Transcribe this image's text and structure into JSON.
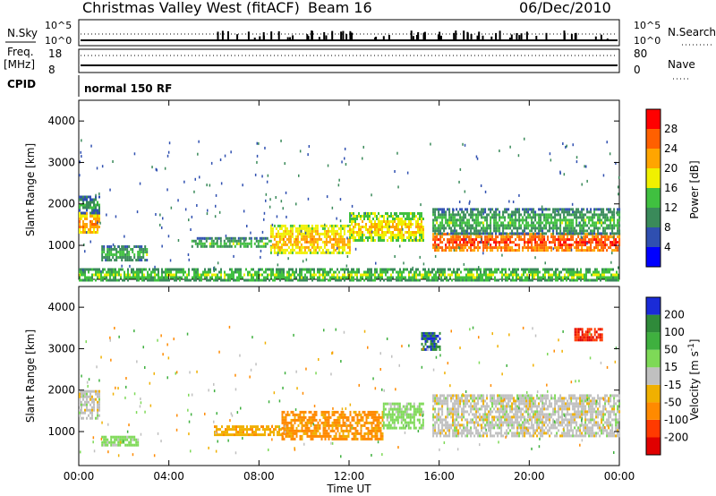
{
  "header": {
    "station": "Christmas Valley West (fitACF)",
    "beam": "Beam 16",
    "date": "06/Dec/2010"
  },
  "strip": {
    "nsky_label": "N.Sky",
    "nsky_ticks": [
      "10^5",
      "10^0"
    ],
    "nsearch_label": "N.Search",
    "freq_label": "Freq.",
    "freq_unit": "[MHz]",
    "freq_ticks": [
      "18",
      "8"
    ],
    "nave_ticks": [
      "80",
      "0"
    ],
    "nave_label": "Nave",
    "cpid_label": "CPID",
    "cpid_value": "normal 150 RF"
  },
  "axes": {
    "xlabel": "Time UT",
    "xticks": [
      "00:00",
      "04:00",
      "08:00",
      "12:00",
      "16:00",
      "20:00",
      "00:00"
    ],
    "ylabel": "Slant Range [km]",
    "yticks": [
      "1000",
      "2000",
      "3000",
      "4000"
    ]
  },
  "colorbars": {
    "power": {
      "label": "Power [dB]",
      "ticks": [
        "4",
        "8",
        "12",
        "16",
        "20",
        "24",
        "28"
      ],
      "colors": [
        "#0000ff",
        "#2f4fb0",
        "#3a8a5a",
        "#40c040",
        "#f0f000",
        "#ffa500",
        "#ff6000",
        "#ff0000"
      ]
    },
    "velocity": {
      "label": "Velocity [m s",
      "label_sup": "-1",
      "label_end": "]",
      "ticks": [
        "200",
        "100",
        "50",
        "15",
        "-15",
        "-50",
        "-100",
        "-200"
      ],
      "colors": [
        "#1a2bd8",
        "#2f8a3a",
        "#3fb03f",
        "#7ed957",
        "#c0c0c0",
        "#f0b000",
        "#ff8a00",
        "#ff3a00",
        "#e00000"
      ]
    }
  },
  "chart_data": [
    {
      "type": "heatmap",
      "title": "Power",
      "xlabel": "Time UT",
      "ylabel": "Slant Range [km]",
      "xlim": [
        0,
        24
      ],
      "ylim": [
        180,
        4500
      ],
      "colorbar": "Power [dB]",
      "regions": [
        {
          "t0": 0.0,
          "t1": 0.9,
          "r0": 1300,
          "r1": 1800,
          "value_db": 20
        },
        {
          "t0": 0.0,
          "t1": 0.9,
          "r0": 1800,
          "r1": 2200,
          "value_db": 8
        },
        {
          "t0": 1.0,
          "t1": 3.0,
          "r0": 650,
          "r1": 1000,
          "value_db": 10
        },
        {
          "t0": 5.0,
          "t1": 8.5,
          "r0": 950,
          "r1": 1200,
          "value_db": 10
        },
        {
          "t0": 8.5,
          "t1": 12.0,
          "r0": 800,
          "r1": 1500,
          "value_db": 18
        },
        {
          "t0": 12.0,
          "t1": 15.3,
          "r0": 1100,
          "r1": 1800,
          "value_db": 16
        },
        {
          "t0": 15.7,
          "t1": 24.0,
          "r0": 900,
          "r1": 1300,
          "value_db": 24
        },
        {
          "t0": 15.7,
          "t1": 24.0,
          "r0": 1300,
          "r1": 1900,
          "value_db": 10
        },
        {
          "t0": 0.0,
          "t1": 24.0,
          "r0": 180,
          "r1": 450,
          "value_db": 12
        }
      ]
    },
    {
      "type": "heatmap",
      "title": "Velocity",
      "xlabel": "Time UT",
      "ylabel": "Slant Range [km]",
      "xlim": [
        0,
        24
      ],
      "ylim": [
        180,
        4500
      ],
      "colorbar": "Velocity [m s-1]",
      "regions": [
        {
          "t0": 0.0,
          "t1": 0.9,
          "r0": 1300,
          "r1": 2000,
          "value_ms": 0
        },
        {
          "t0": 1.0,
          "t1": 2.6,
          "r0": 700,
          "r1": 900,
          "value_ms": 30
        },
        {
          "t0": 6.0,
          "t1": 9.0,
          "r0": 950,
          "r1": 1150,
          "value_ms": -40
        },
        {
          "t0": 9.0,
          "t1": 13.5,
          "r0": 800,
          "r1": 1500,
          "value_ms": -60
        },
        {
          "t0": 13.5,
          "t1": 15.3,
          "r0": 1100,
          "r1": 1700,
          "value_ms": 30
        },
        {
          "t0": 15.7,
          "t1": 24.0,
          "r0": 900,
          "r1": 1900,
          "value_ms": 0
        },
        {
          "t0": 15.2,
          "t1": 16.0,
          "r0": 3000,
          "r1": 3400,
          "value_ms": 200
        },
        {
          "t0": 22.0,
          "t1": 23.2,
          "r0": 3200,
          "r1": 3500,
          "value_ms": -200
        }
      ]
    }
  ]
}
